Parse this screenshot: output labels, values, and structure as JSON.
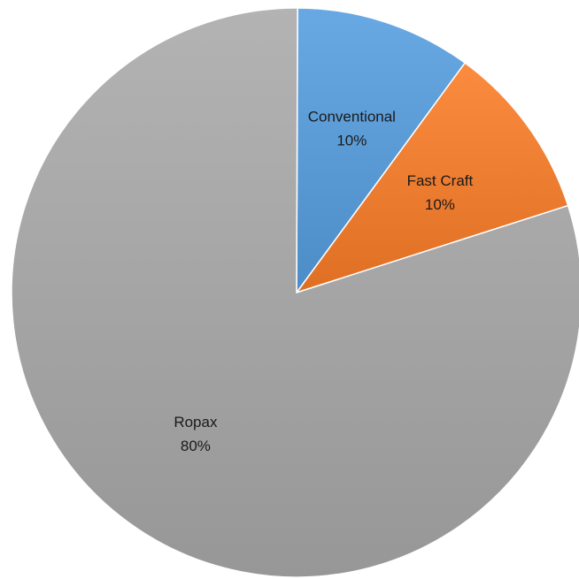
{
  "chart_data": {
    "type": "pie",
    "title": "",
    "start_angle_deg": 0,
    "direction": "clockwise",
    "slices": [
      {
        "label": "Conventional",
        "value": 10,
        "value_label": "10%",
        "color": "#5b9bd5"
      },
      {
        "label": "Fast Craft",
        "value": 10,
        "value_label": "10%",
        "color": "#ed7d31"
      },
      {
        "label": "Ropax",
        "value": 80,
        "value_label": "80%",
        "color": "#a5a5a5"
      }
    ],
    "legend": "none",
    "data_labels": "inside"
  }
}
